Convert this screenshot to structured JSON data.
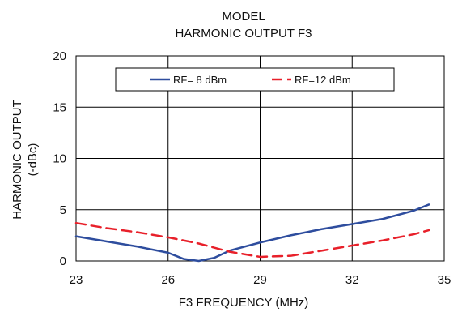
{
  "chart_data": {
    "type": "line",
    "title": "MODEL",
    "subtitle": "HARMONIC OUTPUT F3",
    "xlabel": "F3 FREQUENCY (MHz)",
    "ylabel": "HARMONIC OUTPUT",
    "ylabel_unit": "(-dBc)",
    "xlim": [
      23,
      35
    ],
    "ylim": [
      0,
      20
    ],
    "xticks": [
      23,
      26,
      29,
      32,
      35
    ],
    "yticks": [
      0,
      5,
      10,
      15,
      20
    ],
    "grid": true,
    "legend_position": "top",
    "series": [
      {
        "name": "RF= 8 dBm",
        "color": "#2e4d9e",
        "dash": "solid",
        "x": [
          23,
          24,
          25,
          26,
          26.5,
          27,
          27.5,
          28,
          29,
          30,
          31,
          32,
          33,
          34,
          34.5
        ],
        "y": [
          2.4,
          1.9,
          1.4,
          0.8,
          0.2,
          0.0,
          0.3,
          1.0,
          1.8,
          2.5,
          3.1,
          3.6,
          4.1,
          4.9,
          5.5
        ]
      },
      {
        "name": "RF=12 dBm",
        "color": "#e8202a",
        "dash": "dashed",
        "x": [
          23,
          24,
          25,
          26,
          27,
          28,
          29,
          30,
          31,
          32,
          33,
          34,
          34.5
        ],
        "y": [
          3.7,
          3.2,
          2.8,
          2.3,
          1.7,
          0.9,
          0.4,
          0.5,
          1.0,
          1.5,
          2.0,
          2.6,
          3.0
        ]
      }
    ]
  }
}
